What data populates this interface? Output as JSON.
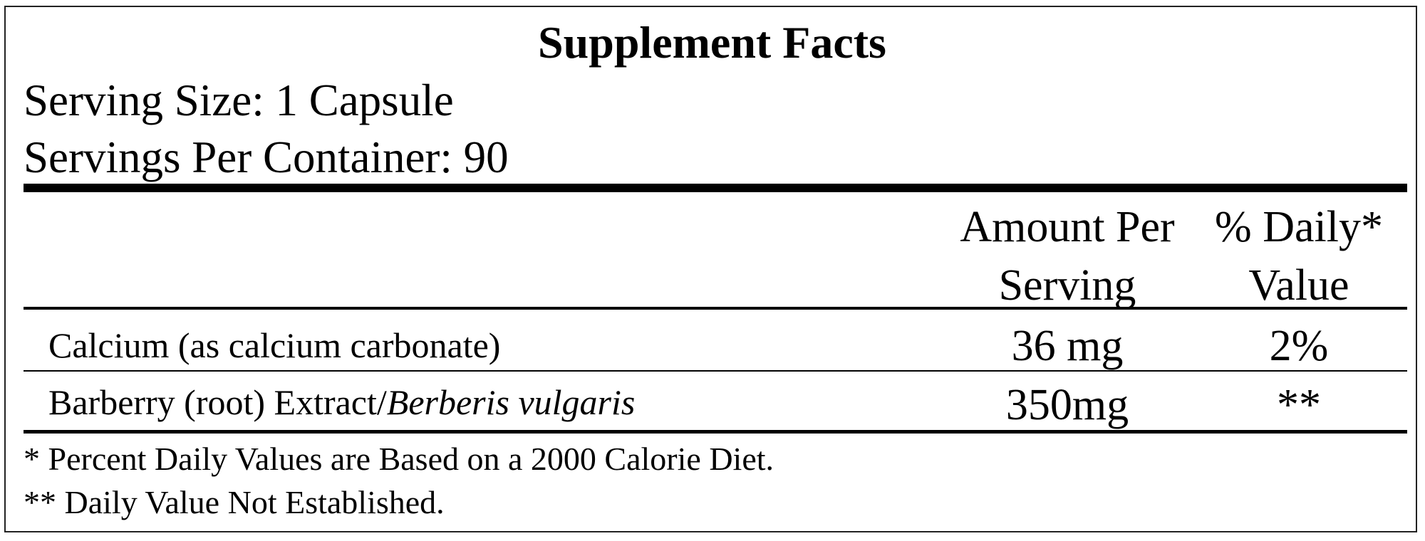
{
  "label": {
    "title": "Supplement Facts",
    "serving_size": "Serving Size:  1 Capsule",
    "servings_per_container": "Servings Per Container:  90"
  },
  "columns": {
    "amount_line1": "Amount Per",
    "amount_line2": "Serving",
    "dv_line1": "% Daily*",
    "dv_line2": "Value"
  },
  "rows": [
    {
      "name": "Calcium (as calcium carbonate)",
      "amount": "36 mg",
      "daily_value": "2%"
    },
    {
      "name_prefix": "Barberry (root) Extract/",
      "name_italic": "Berberis vulgaris",
      "amount": "350mg",
      "daily_value": "**"
    }
  ],
  "footnotes": [
    "* Percent Daily Values are Based on a 2000 Calorie Diet.",
    "** Daily Value Not Established."
  ]
}
